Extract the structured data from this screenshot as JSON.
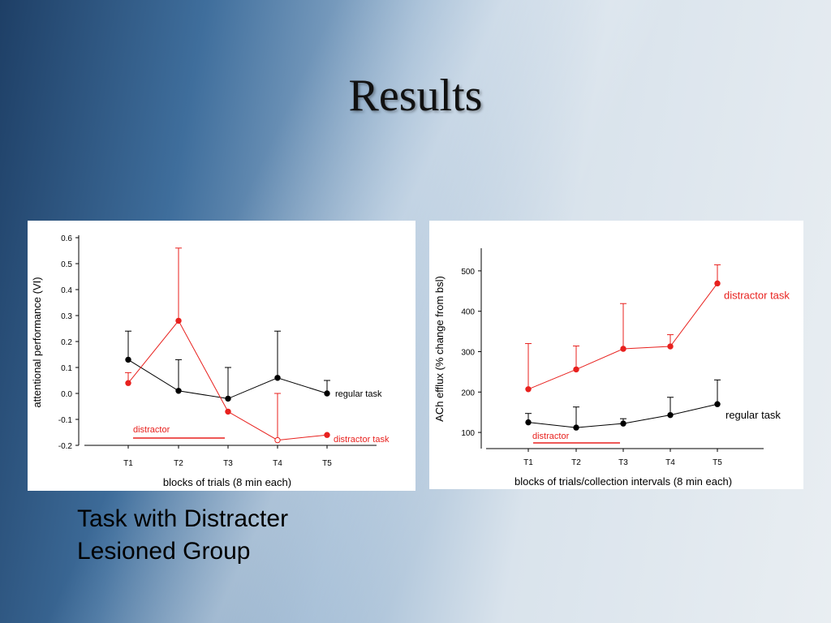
{
  "slide": {
    "title": "Results",
    "caption_line1": "Task with Distracter",
    "caption_line2": "Lesioned Group"
  },
  "chart_data": [
    {
      "type": "line",
      "xlabel": "blocks of trials (8 min each)",
      "ylabel": "attentional performance (VI)",
      "categories": [
        "T1",
        "T2",
        "T3",
        "T4",
        "T5"
      ],
      "ylim": [
        -0.2,
        0.6
      ],
      "yticks": [
        -0.2,
        -0.1,
        0.0,
        0.1,
        0.2,
        0.3,
        0.4,
        0.5,
        0.6
      ],
      "ytick_labels": [
        "-0.2",
        "-0.1",
        "0.0",
        "0.1",
        "0.2",
        "0.3",
        "0.4",
        "0.5",
        "0.6"
      ],
      "distractor_label": "distractor",
      "distractor_span": [
        "T1",
        "T3"
      ],
      "series": [
        {
          "name": "regular task",
          "color": "#000000",
          "values": [
            0.13,
            0.01,
            -0.02,
            0.06,
            0.0
          ],
          "error_upper": [
            0.24,
            0.13,
            0.1,
            0.24,
            0.05
          ],
          "hollow": [
            false,
            false,
            false,
            false,
            false
          ]
        },
        {
          "name": "distractor task",
          "color": "#e8211e",
          "values": [
            0.04,
            0.28,
            -0.07,
            -0.18,
            -0.16
          ],
          "error_upper": [
            0.08,
            0.56,
            -0.07,
            0.0,
            -0.16
          ],
          "hollow": [
            false,
            false,
            false,
            true,
            false
          ]
        }
      ]
    },
    {
      "type": "line",
      "xlabel": "blocks of trials/collection intervals (8 min each)",
      "ylabel": "ACh efflux (% change from bsl)",
      "categories": [
        "T1",
        "T2",
        "T3",
        "T4",
        "T5"
      ],
      "ylim": [
        60,
        550
      ],
      "yticks": [
        100,
        200,
        300,
        400,
        500
      ],
      "ytick_labels": [
        "100",
        "200",
        "300",
        "400",
        "500"
      ],
      "distractor_label": "distractor",
      "distractor_span": [
        "T1",
        "T3"
      ],
      "series": [
        {
          "name": "regular task",
          "color": "#000000",
          "values": [
            125,
            112,
            122,
            143,
            170
          ],
          "error_upper": [
            147,
            163,
            134,
            187,
            230
          ],
          "hollow": [
            false,
            false,
            false,
            false,
            false
          ]
        },
        {
          "name": "distractor task",
          "color": "#e8211e",
          "values": [
            207,
            256,
            307,
            313,
            469
          ],
          "error_upper": [
            320,
            314,
            419,
            342,
            515
          ],
          "hollow": [
            false,
            false,
            false,
            false,
            false
          ]
        }
      ]
    }
  ]
}
